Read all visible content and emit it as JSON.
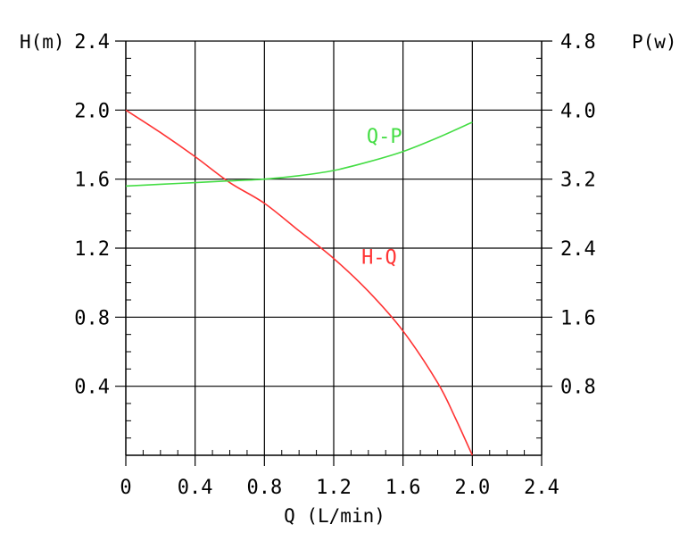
{
  "chart_data": {
    "type": "line",
    "x_axis": {
      "label": "Q (L/min)",
      "range": [
        0,
        2.4
      ],
      "ticks": [
        0,
        0.4,
        0.8,
        1.2,
        1.6,
        2.0,
        2.4
      ],
      "tick_labels": [
        "0",
        "0.4",
        "0.8",
        "1.2",
        "1.6",
        "2.0",
        "2.4"
      ]
    },
    "y_axis_left": {
      "label": "H(m)",
      "range": [
        0,
        2.4
      ],
      "ticks": [
        0.4,
        0.8,
        1.2,
        1.6,
        2.0,
        2.4
      ],
      "tick_labels": [
        "0.4",
        "0.8",
        "1.2",
        "1.6",
        "2.0",
        "2.4"
      ]
    },
    "y_axis_right": {
      "label": "P(w)",
      "range": [
        0,
        4.8
      ],
      "ticks": [
        0.8,
        1.6,
        2.4,
        3.2,
        4.0,
        4.8
      ],
      "tick_labels": [
        "0.8",
        "1.6",
        "2.4",
        "3.2",
        "4.0",
        "4.8"
      ]
    },
    "grid": true,
    "series": [
      {
        "name": "H-Q",
        "axis": "left",
        "color": "#ff3333",
        "label_at": [
          1.36,
          1.11
        ],
        "x": [
          0,
          0.2,
          0.4,
          0.6,
          0.8,
          1.0,
          1.2,
          1.4,
          1.6,
          1.8,
          1.9,
          2.0
        ],
        "y": [
          2.0,
          1.87,
          1.73,
          1.58,
          1.46,
          1.3,
          1.14,
          0.95,
          0.72,
          0.42,
          0.22,
          0.0
        ]
      },
      {
        "name": "Q-P",
        "axis": "right",
        "color": "#44dd44",
        "label_at": [
          1.39,
          3.62
        ],
        "x": [
          0,
          0.2,
          0.4,
          0.6,
          0.8,
          1.0,
          1.2,
          1.4,
          1.6,
          1.8,
          2.0
        ],
        "y": [
          3.12,
          3.14,
          3.16,
          3.18,
          3.2,
          3.24,
          3.3,
          3.4,
          3.52,
          3.68,
          3.86
        ]
      }
    ]
  }
}
